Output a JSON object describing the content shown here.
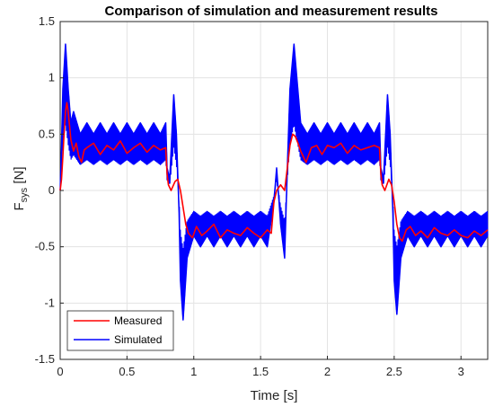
{
  "chart_data": {
    "type": "line",
    "title": "Comparison of simulation and measurement results",
    "xlabel": "Time [s]",
    "ylabel": "F",
    "ylabel_sub": "sys",
    "ylabel_unit": " [N]",
    "xlim": [
      0,
      3.2
    ],
    "ylim": [
      -1.5,
      1.5
    ],
    "xticks": [
      0,
      0.5,
      1,
      1.5,
      2,
      2.5,
      3
    ],
    "xtick_labels": [
      "0",
      "0.5",
      "1",
      "1.5",
      "2",
      "2.5",
      "3"
    ],
    "yticks": [
      -1.5,
      -1,
      -0.5,
      0,
      0.5,
      1,
      1.5
    ],
    "ytick_labels": [
      "-1.5",
      "-1",
      "-0.5",
      "0",
      "0.5",
      "1",
      "1.5"
    ],
    "grid": true,
    "legend_position": "bottom-left",
    "series": [
      {
        "name": "Measured",
        "color": "#ff0000",
        "x": [
          0,
          0.01,
          0.02,
          0.03,
          0.04,
          0.05,
          0.06,
          0.08,
          0.1,
          0.12,
          0.14,
          0.16,
          0.18,
          0.2,
          0.25,
          0.3,
          0.35,
          0.4,
          0.45,
          0.5,
          0.55,
          0.6,
          0.65,
          0.7,
          0.75,
          0.79,
          0.8,
          0.81,
          0.83,
          0.86,
          0.88,
          0.9,
          0.92,
          0.94,
          0.96,
          0.99,
          1.02,
          1.06,
          1.1,
          1.15,
          1.2,
          1.25,
          1.3,
          1.35,
          1.4,
          1.45,
          1.5,
          1.55,
          1.58,
          1.6,
          1.61,
          1.62,
          1.65,
          1.68,
          1.7,
          1.72,
          1.74,
          1.76,
          1.78,
          1.8,
          1.82,
          1.84,
          1.88,
          1.92,
          1.96,
          2.0,
          2.05,
          2.1,
          2.15,
          2.2,
          2.25,
          2.3,
          2.35,
          2.39,
          2.4,
          2.41,
          2.43,
          2.46,
          2.48,
          2.5,
          2.52,
          2.54,
          2.56,
          2.59,
          2.62,
          2.66,
          2.7,
          2.75,
          2.8,
          2.85,
          2.9,
          2.95,
          3.0,
          3.05,
          3.1,
          3.15,
          3.2
        ],
        "values": [
          0.0,
          0.1,
          0.3,
          0.52,
          0.7,
          0.78,
          0.7,
          0.45,
          0.35,
          0.42,
          0.3,
          0.25,
          0.36,
          0.38,
          0.42,
          0.32,
          0.4,
          0.36,
          0.44,
          0.33,
          0.38,
          0.42,
          0.34,
          0.4,
          0.36,
          0.38,
          0.15,
          0.05,
          0.0,
          0.08,
          0.1,
          0.0,
          -0.15,
          -0.3,
          -0.38,
          -0.42,
          -0.32,
          -0.4,
          -0.36,
          -0.3,
          -0.42,
          -0.35,
          -0.38,
          -0.4,
          -0.33,
          -0.38,
          -0.42,
          -0.35,
          -0.38,
          -0.1,
          -0.05,
          0.0,
          0.05,
          0.0,
          0.2,
          0.4,
          0.5,
          0.48,
          0.42,
          0.35,
          0.3,
          0.25,
          0.38,
          0.4,
          0.32,
          0.4,
          0.38,
          0.42,
          0.33,
          0.4,
          0.36,
          0.38,
          0.4,
          0.38,
          0.15,
          0.05,
          0.0,
          0.1,
          0.05,
          -0.1,
          -0.3,
          -0.42,
          -0.45,
          -0.35,
          -0.32,
          -0.4,
          -0.36,
          -0.42,
          -0.33,
          -0.38,
          -0.4,
          -0.35,
          -0.4,
          -0.42,
          -0.36,
          -0.4,
          -0.35
        ]
      },
      {
        "name": "Simulated",
        "color": "#0000ff",
        "x": [
          0,
          0.01,
          0.02,
          0.03,
          0.04,
          0.05,
          0.06,
          0.08,
          0.1,
          0.15,
          0.2,
          0.25,
          0.3,
          0.35,
          0.4,
          0.45,
          0.5,
          0.55,
          0.6,
          0.65,
          0.7,
          0.75,
          0.79,
          0.8,
          0.82,
          0.85,
          0.87,
          0.89,
          0.9,
          0.92,
          0.95,
          1.0,
          1.05,
          1.1,
          1.15,
          1.2,
          1.25,
          1.3,
          1.35,
          1.4,
          1.45,
          1.5,
          1.55,
          1.6,
          1.62,
          1.65,
          1.68,
          1.7,
          1.72,
          1.75,
          1.8,
          1.85,
          1.9,
          1.95,
          2.0,
          2.05,
          2.1,
          2.15,
          2.2,
          2.25,
          2.3,
          2.35,
          2.39,
          2.4,
          2.42,
          2.45,
          2.47,
          2.49,
          2.5,
          2.52,
          2.55,
          2.6,
          2.65,
          2.7,
          2.75,
          2.8,
          2.85,
          2.9,
          2.95,
          3.0,
          3.05,
          3.1,
          3.15,
          3.2
        ],
        "values": [
          0.0,
          0.4,
          0.9,
          1.1,
          1.3,
          1.1,
          0.9,
          0.6,
          0.7,
          0.5,
          0.6,
          0.5,
          0.6,
          0.5,
          0.6,
          0.5,
          0.6,
          0.5,
          0.6,
          0.5,
          0.6,
          0.5,
          0.6,
          0.2,
          0.1,
          0.85,
          0.5,
          -0.2,
          -0.8,
          -1.15,
          -0.6,
          -0.4,
          -0.5,
          -0.4,
          -0.5,
          -0.4,
          -0.5,
          -0.4,
          -0.5,
          -0.4,
          -0.5,
          -0.4,
          -0.5,
          -0.1,
          0.2,
          -0.3,
          -0.6,
          0.2,
          0.9,
          1.3,
          0.6,
          0.5,
          0.6,
          0.5,
          0.6,
          0.5,
          0.6,
          0.5,
          0.6,
          0.5,
          0.6,
          0.5,
          0.6,
          0.2,
          0.1,
          0.85,
          0.5,
          -0.2,
          -0.8,
          -1.1,
          -0.6,
          -0.4,
          -0.5,
          -0.4,
          -0.5,
          -0.4,
          -0.5,
          -0.4,
          -0.5,
          -0.4,
          -0.5,
          -0.4,
          -0.5,
          -0.4
        ]
      }
    ]
  }
}
